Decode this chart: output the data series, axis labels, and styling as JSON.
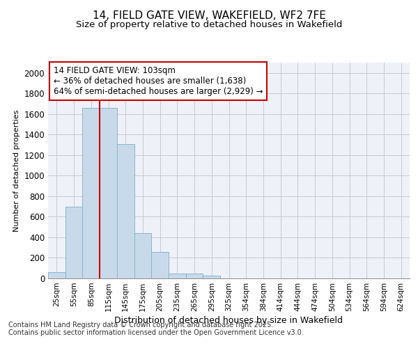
{
  "title1": "14, FIELD GATE VIEW, WAKEFIELD, WF2 7FE",
  "title2": "Size of property relative to detached houses in Wakefield",
  "xlabel": "Distribution of detached houses by size in Wakefield",
  "ylabel": "Number of detached properties",
  "categories": [
    "25sqm",
    "55sqm",
    "85sqm",
    "115sqm",
    "145sqm",
    "175sqm",
    "205sqm",
    "235sqm",
    "265sqm",
    "295sqm",
    "325sqm",
    "354sqm",
    "384sqm",
    "414sqm",
    "444sqm",
    "474sqm",
    "504sqm",
    "534sqm",
    "564sqm",
    "594sqm",
    "624sqm"
  ],
  "values": [
    60,
    700,
    1660,
    1660,
    1310,
    440,
    255,
    50,
    50,
    25,
    0,
    0,
    0,
    0,
    0,
    0,
    0,
    0,
    0,
    0,
    0
  ],
  "bar_color": "#c8daea",
  "bar_edge_color": "#8ab4d0",
  "annotation_text": "14 FIELD GATE VIEW: 103sqm\n← 36% of detached houses are smaller (1,638)\n64% of semi-detached houses are larger (2,929) →",
  "annotation_box_color": "#ffffff",
  "annotation_box_edge": "#cc0000",
  "red_line_color": "#cc0000",
  "red_line_x": 2.5,
  "ylim": [
    0,
    2100
  ],
  "yticks": [
    0,
    200,
    400,
    600,
    800,
    1000,
    1200,
    1400,
    1600,
    1800,
    2000
  ],
  "grid_color": "#c8c8d0",
  "bg_color": "#eef2f8",
  "footnote": "Contains HM Land Registry data © Crown copyright and database right 2025.\nContains public sector information licensed under the Open Government Licence v3.0.",
  "title_fontsize": 11,
  "subtitle_fontsize": 9.5,
  "annot_fontsize": 8.5,
  "ylabel_fontsize": 8,
  "xlabel_fontsize": 9,
  "footnote_fontsize": 7,
  "ytick_fontsize": 8.5,
  "xtick_fontsize": 7.5
}
